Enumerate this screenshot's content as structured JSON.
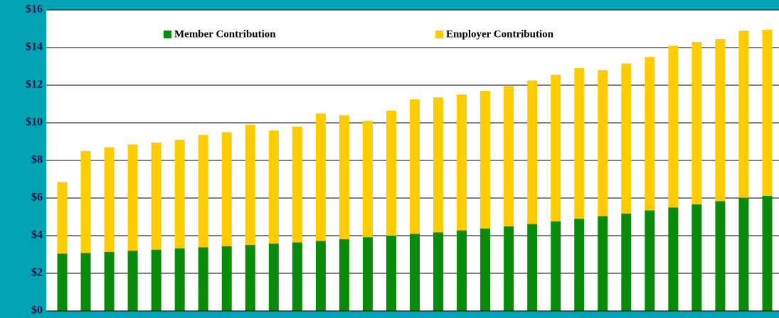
{
  "chart_data": {
    "type": "stacked_bar",
    "categories": [
      null,
      null,
      null,
      null,
      null,
      null,
      null,
      null,
      null,
      null,
      null,
      null,
      null,
      null,
      null,
      null,
      null,
      null,
      null,
      null,
      null,
      null,
      null,
      null,
      null,
      null,
      null,
      null,
      null,
      null,
      null
    ],
    "series": [
      {
        "name": "Member Contribution",
        "color": "#0a8a0a",
        "values": [
          3.05,
          3.08,
          3.14,
          3.2,
          3.26,
          3.32,
          3.38,
          3.44,
          3.51,
          3.58,
          3.64,
          3.72,
          3.82,
          3.92,
          4.0,
          4.1,
          4.18,
          4.28,
          4.38,
          4.5,
          4.62,
          4.76,
          4.9,
          5.04,
          5.18,
          5.34,
          5.5,
          5.66,
          5.84,
          6.02,
          6.12
        ]
      },
      {
        "name": "Employer Contribution",
        "color": "#ffcc00",
        "values": [
          3.8,
          5.42,
          5.56,
          5.65,
          5.69,
          5.78,
          5.97,
          6.06,
          6.39,
          6.02,
          6.16,
          6.78,
          6.58,
          6.18,
          6.65,
          7.15,
          7.17,
          7.22,
          7.32,
          7.45,
          7.63,
          7.79,
          8.0,
          7.76,
          7.97,
          8.16,
          8.6,
          8.64,
          8.61,
          8.88,
          8.83
        ]
      }
    ],
    "ylim": [
      0,
      16
    ],
    "yticks": [
      {
        "value": 0,
        "label": "$0"
      },
      {
        "value": 2,
        "label": "$2"
      },
      {
        "value": 4,
        "label": "$4"
      },
      {
        "value": 6,
        "label": "$6"
      },
      {
        "value": 8,
        "label": "$8"
      },
      {
        "value": 10,
        "label": "$10"
      },
      {
        "value": 12,
        "label": "$12"
      },
      {
        "value": 14,
        "label": "$14"
      },
      {
        "value": 16,
        "label": "$16"
      }
    ],
    "grid": true,
    "legend": "top"
  }
}
